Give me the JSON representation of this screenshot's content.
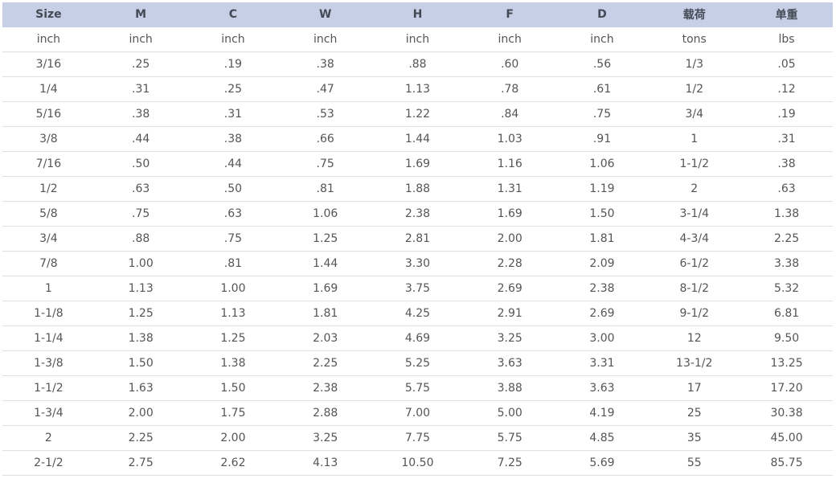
{
  "table": {
    "headers": [
      "Size",
      "M",
      "C",
      "W",
      "H",
      "F",
      "D",
      "载荷",
      "单重"
    ],
    "rows": [
      [
        "inch",
        "inch",
        "inch",
        "inch",
        "inch",
        "inch",
        "inch",
        "tons",
        "lbs"
      ],
      [
        "3/16",
        ".25",
        ".19",
        ".38",
        ".88",
        ".60",
        ".56",
        "1/3",
        ".05"
      ],
      [
        "1/4",
        ".31",
        ".25",
        ".47",
        "1.13",
        ".78",
        ".61",
        "1/2",
        ".12"
      ],
      [
        "5/16",
        ".38",
        ".31",
        ".53",
        "1.22",
        ".84",
        ".75",
        "3/4",
        ".19"
      ],
      [
        "3/8",
        ".44",
        ".38",
        ".66",
        "1.44",
        "1.03",
        ".91",
        "1",
        ".31"
      ],
      [
        "7/16",
        ".50",
        ".44",
        ".75",
        "1.69",
        "1.16",
        "1.06",
        "1-1/2",
        ".38"
      ],
      [
        "1/2",
        ".63",
        ".50",
        ".81",
        "1.88",
        "1.31",
        "1.19",
        "2",
        ".63"
      ],
      [
        "5/8",
        ".75",
        ".63",
        "1.06",
        "2.38",
        "1.69",
        "1.50",
        "3-1/4",
        "1.38"
      ],
      [
        "3/4",
        ".88",
        ".75",
        "1.25",
        "2.81",
        "2.00",
        "1.81",
        "4-3/4",
        "2.25"
      ],
      [
        "7/8",
        "1.00",
        ".81",
        "1.44",
        "3.30",
        "2.28",
        "2.09",
        "6-1/2",
        "3.38"
      ],
      [
        "1",
        "1.13",
        "1.00",
        "1.69",
        "3.75",
        "2.69",
        "2.38",
        "8-1/2",
        "5.32"
      ],
      [
        "1-1/8",
        "1.25",
        "1.13",
        "1.81",
        "4.25",
        "2.91",
        "2.69",
        "9-1/2",
        "6.81"
      ],
      [
        "1-1/4",
        "1.38",
        "1.25",
        "2.03",
        "4.69",
        "3.25",
        "3.00",
        "12",
        "9.50"
      ],
      [
        "1-3/8",
        "1.50",
        "1.38",
        "2.25",
        "5.25",
        "3.63",
        "3.31",
        "13-1/2",
        "13.25"
      ],
      [
        "1-1/2",
        "1.63",
        "1.50",
        "2.38",
        "5.75",
        "3.88",
        "3.63",
        "17",
        "17.20"
      ],
      [
        "1-3/4",
        "2.00",
        "1.75",
        "2.88",
        "7.00",
        "5.00",
        "4.19",
        "25",
        "30.38"
      ],
      [
        "2",
        "2.25",
        "2.00",
        "3.25",
        "7.75",
        "5.75",
        "4.85",
        "35",
        "45.00"
      ],
      [
        "2-1/2",
        "2.75",
        "2.62",
        "4.13",
        "10.50",
        "7.25",
        "5.69",
        "55",
        "85.75"
      ]
    ]
  },
  "colors": {
    "header_background": "#c6cfe6",
    "header_text": "#444a55",
    "cell_text": "#555555",
    "row_divider": "#e0e0e0"
  }
}
